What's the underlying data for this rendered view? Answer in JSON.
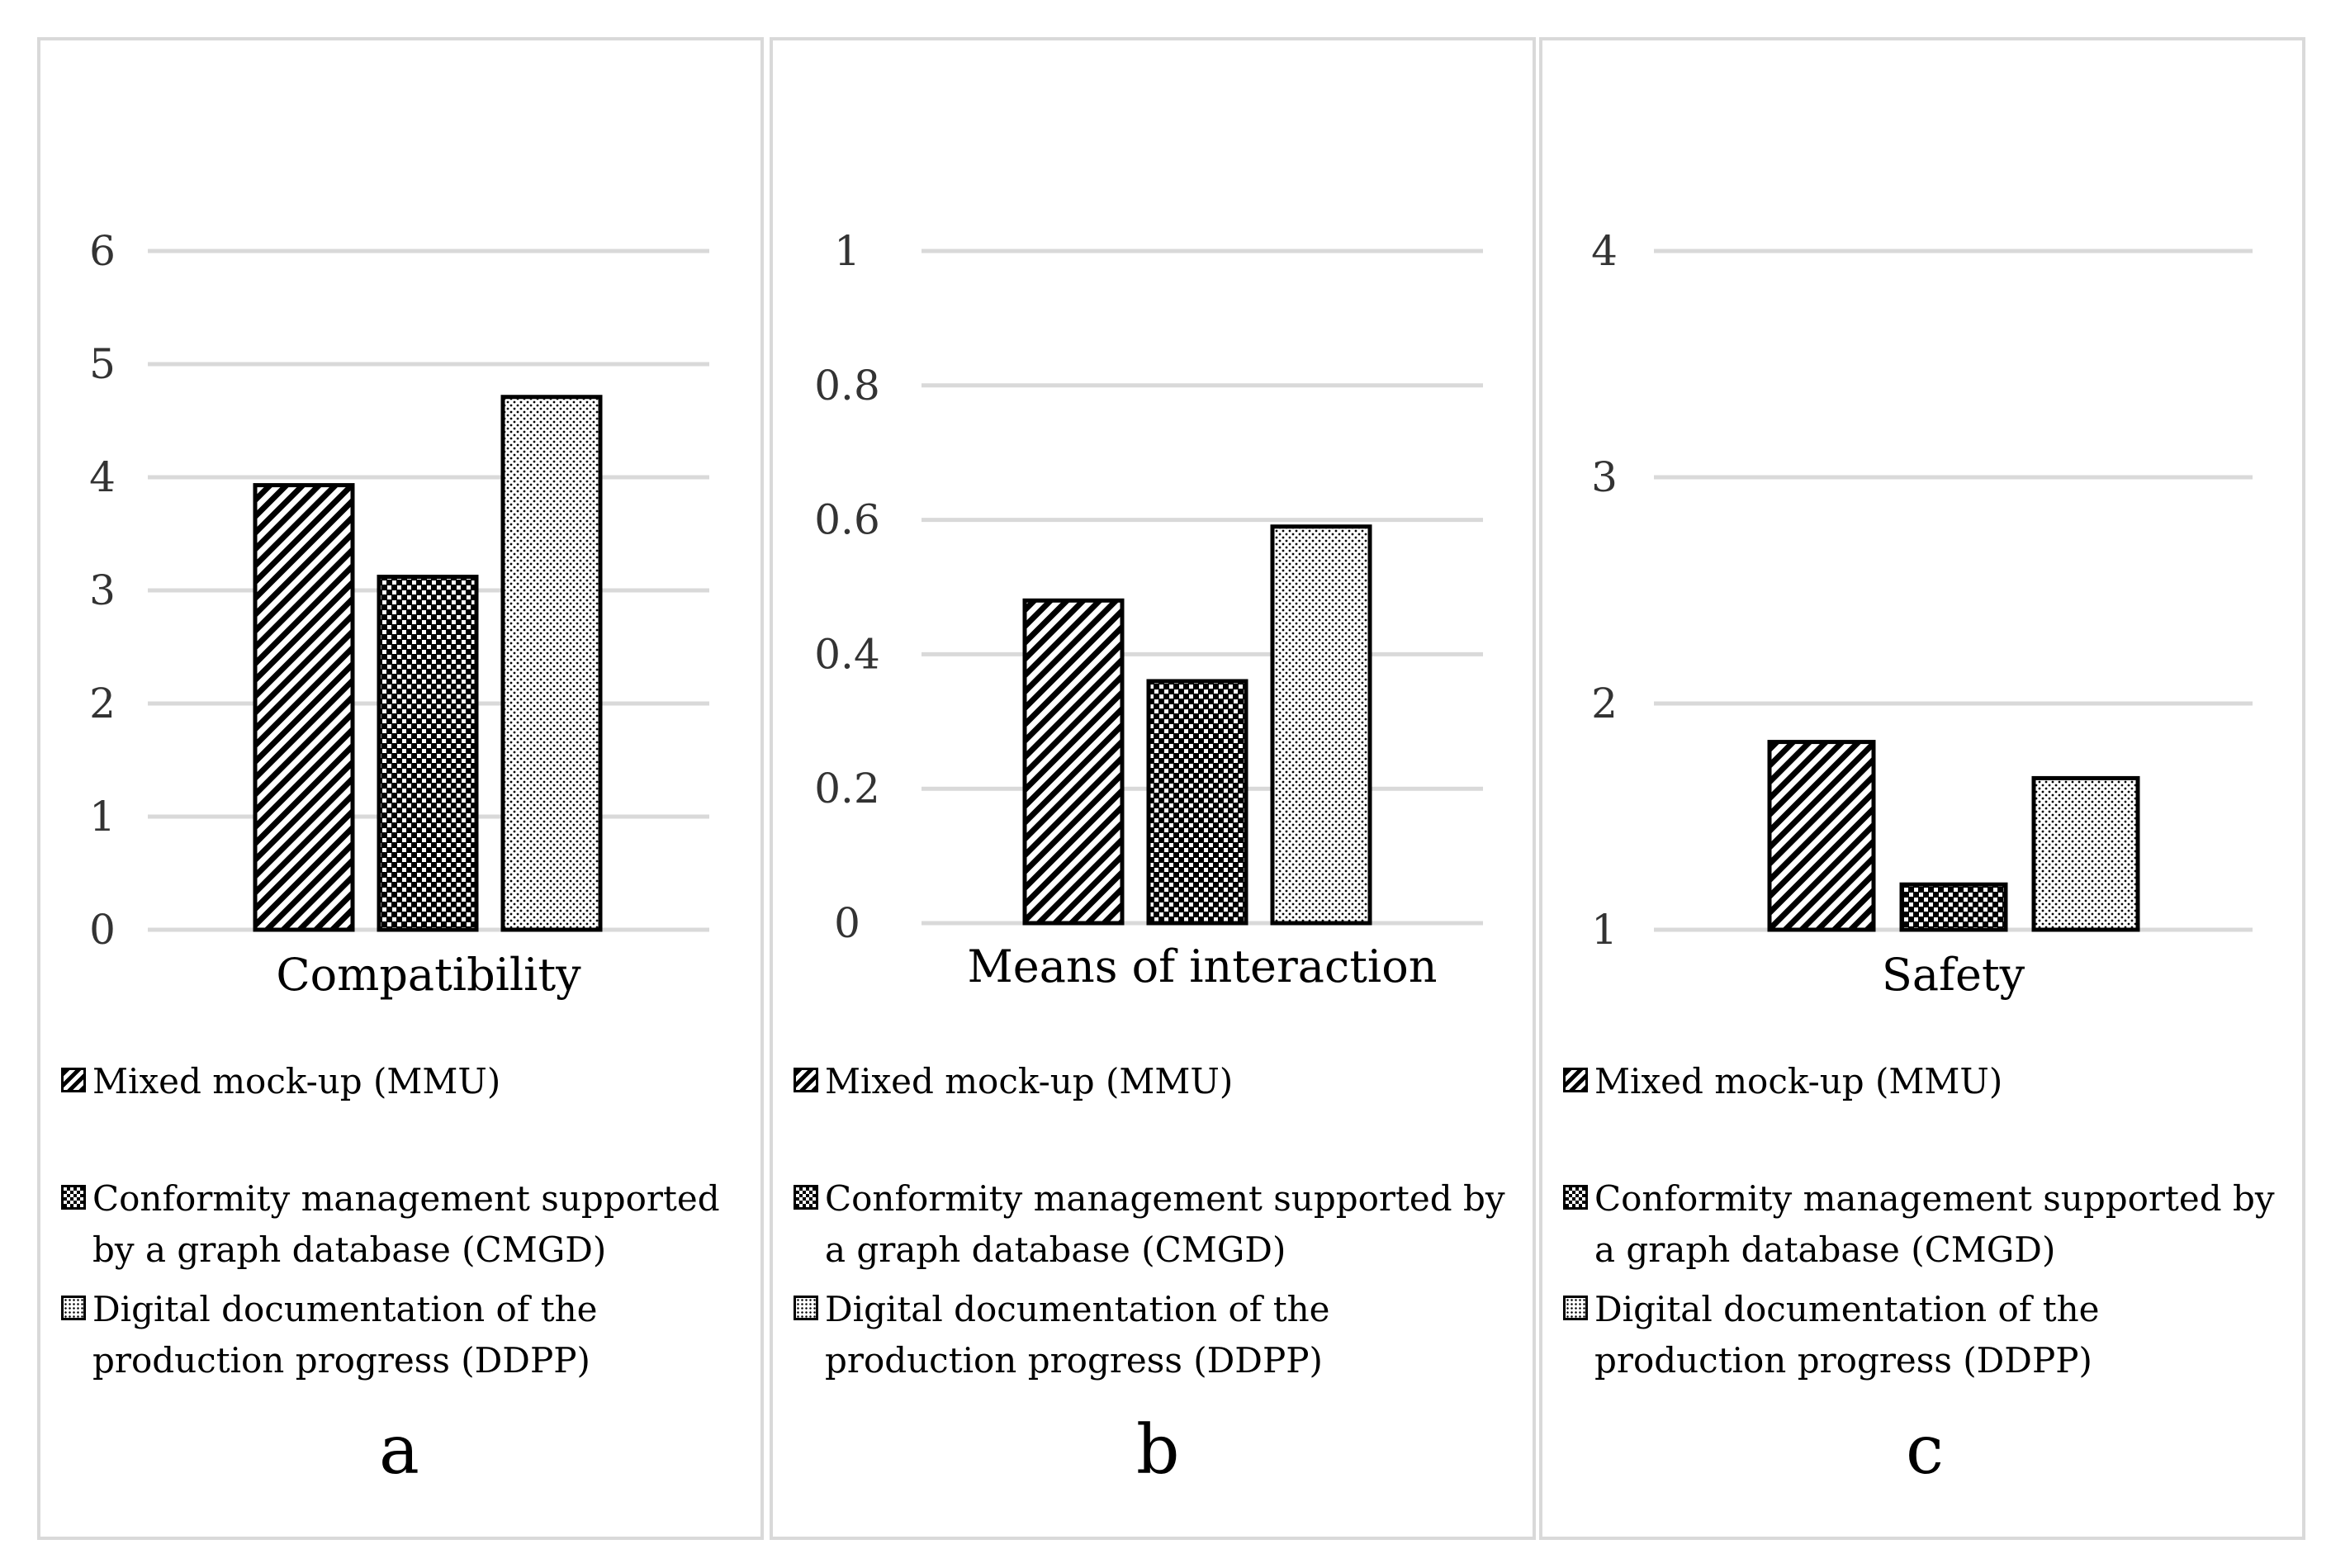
{
  "chart_data": [
    {
      "type": "bar",
      "title": "",
      "categories": [
        "Compatibility"
      ],
      "series": [
        {
          "name": "Mixed mock-up (MMU)",
          "values": [
            3.93
          ]
        },
        {
          "name": "Conformity management supported by a graph database (CMGD)",
          "values": [
            3.12
          ]
        },
        {
          "name": "Digital documentation of the production progress (DDPP)",
          "values": [
            4.71
          ]
        }
      ],
      "xlabel": "Compatibility",
      "ylabel": "",
      "ylim": [
        0,
        6
      ],
      "yticks": [
        "0",
        "1",
        "2",
        "3",
        "4",
        "5",
        "6"
      ],
      "grid": true,
      "legend_position": "bottom",
      "panel_label": "a"
    },
    {
      "type": "bar",
      "title": "",
      "categories": [
        "Means of interaction"
      ],
      "series": [
        {
          "name": "Mixed mock-up (MMU)",
          "values": [
            0.48
          ]
        },
        {
          "name": "Conformity management supported by a graph database (CMGD)",
          "values": [
            0.36
          ]
        },
        {
          "name": "Digital documentation of the production progress (DDPP)",
          "values": [
            0.59
          ]
        }
      ],
      "xlabel": "Means of interaction",
      "ylabel": "",
      "ylim": [
        0,
        1
      ],
      "yticks": [
        "0",
        "0.2",
        "0.4",
        "0.6",
        "0.8",
        "1"
      ],
      "grid": true,
      "legend_position": "bottom",
      "panel_label": "b"
    },
    {
      "type": "bar",
      "title": "",
      "categories": [
        "Safety"
      ],
      "series": [
        {
          "name": "Mixed mock-up (MMU)",
          "values": [
            1.83
          ]
        },
        {
          "name": "Conformity management supported by a graph database (CMGD)",
          "values": [
            1.2
          ]
        },
        {
          "name": "Digital documentation of the production progress (DDPP)",
          "values": [
            1.67
          ]
        }
      ],
      "xlabel": "Safety",
      "ylabel": "",
      "ylim": [
        1,
        4
      ],
      "yticks": [
        "1",
        "2",
        "3",
        "4"
      ],
      "grid": true,
      "legend_position": "bottom",
      "panel_label": "c"
    }
  ],
  "colors": {
    "grid": "#d9d9d9",
    "bar_stroke": "#000000",
    "panel_border": "#d9d9d9"
  }
}
